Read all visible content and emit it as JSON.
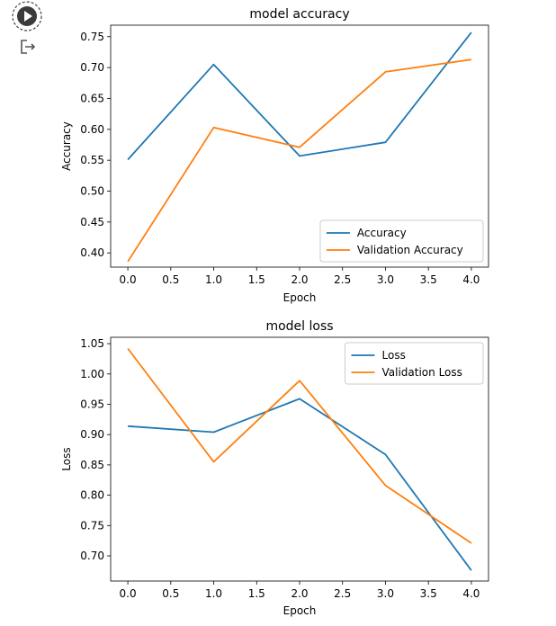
{
  "cell": {
    "run_icon": "play-circle-icon",
    "output_icon": "output-redirect-icon"
  },
  "colors": {
    "series_blue": "#1f77b4",
    "series_orange": "#ff7f0e",
    "axis": "#000000",
    "legend_border": "#cccccc"
  },
  "chart_data": [
    {
      "type": "line",
      "title": "model accuracy",
      "xlabel": "Epoch",
      "ylabel": "Accuracy",
      "x": [
        0,
        1,
        2,
        3,
        4
      ],
      "xticks": [
        "0.0",
        "0.5",
        "1.0",
        "1.5",
        "2.0",
        "2.5",
        "3.0",
        "3.5",
        "4.0"
      ],
      "yticks": [
        "0.40",
        "0.45",
        "0.50",
        "0.55",
        "0.60",
        "0.65",
        "0.70",
        "0.75"
      ],
      "xlim": [
        -0.2,
        4.2
      ],
      "ylim": [
        0.377,
        0.7686
      ],
      "grid": false,
      "legend_position": "lower-right",
      "series": [
        {
          "name": "Accuracy",
          "color": "#1f77b4",
          "values": [
            0.551,
            0.705,
            0.557,
            0.579,
            0.757
          ]
        },
        {
          "name": "Validation Accuracy",
          "color": "#ff7f0e",
          "values": [
            0.386,
            0.603,
            0.571,
            0.693,
            0.713
          ]
        }
      ]
    },
    {
      "type": "line",
      "title": "model loss",
      "xlabel": "Epoch",
      "ylabel": "Loss",
      "x": [
        0,
        1,
        2,
        3,
        4
      ],
      "xticks": [
        "0.0",
        "0.5",
        "1.0",
        "1.5",
        "2.0",
        "2.5",
        "3.0",
        "3.5",
        "4.0"
      ],
      "yticks": [
        "0.70",
        "0.75",
        "0.80",
        "0.85",
        "0.90",
        "0.95",
        "1.00",
        "1.05"
      ],
      "xlim": [
        -0.2,
        4.2
      ],
      "ylim": [
        0.6585,
        1.0605
      ],
      "grid": false,
      "legend_position": "upper-right",
      "series": [
        {
          "name": "Loss",
          "color": "#1f77b4",
          "values": [
            0.914,
            0.904,
            0.959,
            0.867,
            0.676
          ]
        },
        {
          "name": "Validation Loss",
          "color": "#ff7f0e",
          "values": [
            1.042,
            0.855,
            0.989,
            0.816,
            0.721
          ]
        }
      ]
    }
  ]
}
